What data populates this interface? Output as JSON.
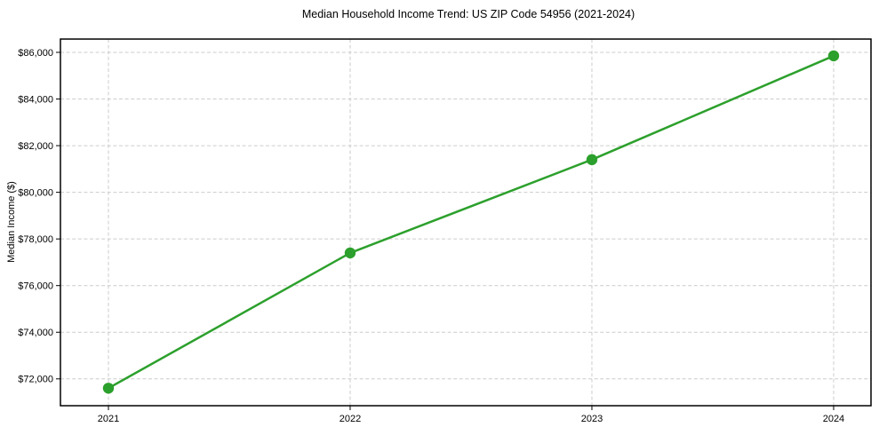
{
  "chart_data": {
    "type": "line",
    "title": "Median Household Income Trend: US ZIP Code 54956 (2021-2024)",
    "xlabel": "",
    "ylabel": "Median Income ($)",
    "categories": [
      "2021",
      "2022",
      "2023",
      "2024"
    ],
    "series": [
      {
        "color": "#2ca02c",
        "marker": "circle",
        "values": [
          71600,
          77400,
          81400,
          85850
        ]
      }
    ],
    "yticks": [
      72000,
      74000,
      76000,
      78000,
      80000,
      82000,
      84000,
      86000
    ],
    "ytick_prefix": "$",
    "ylim": [
      70850,
      86570
    ],
    "grid": "both",
    "grid_style": "dashed",
    "grid_color": "#cccccc",
    "axis_color": "#000000",
    "text_color": "#000000",
    "background": "#ffffff",
    "legend_position": "none"
  }
}
